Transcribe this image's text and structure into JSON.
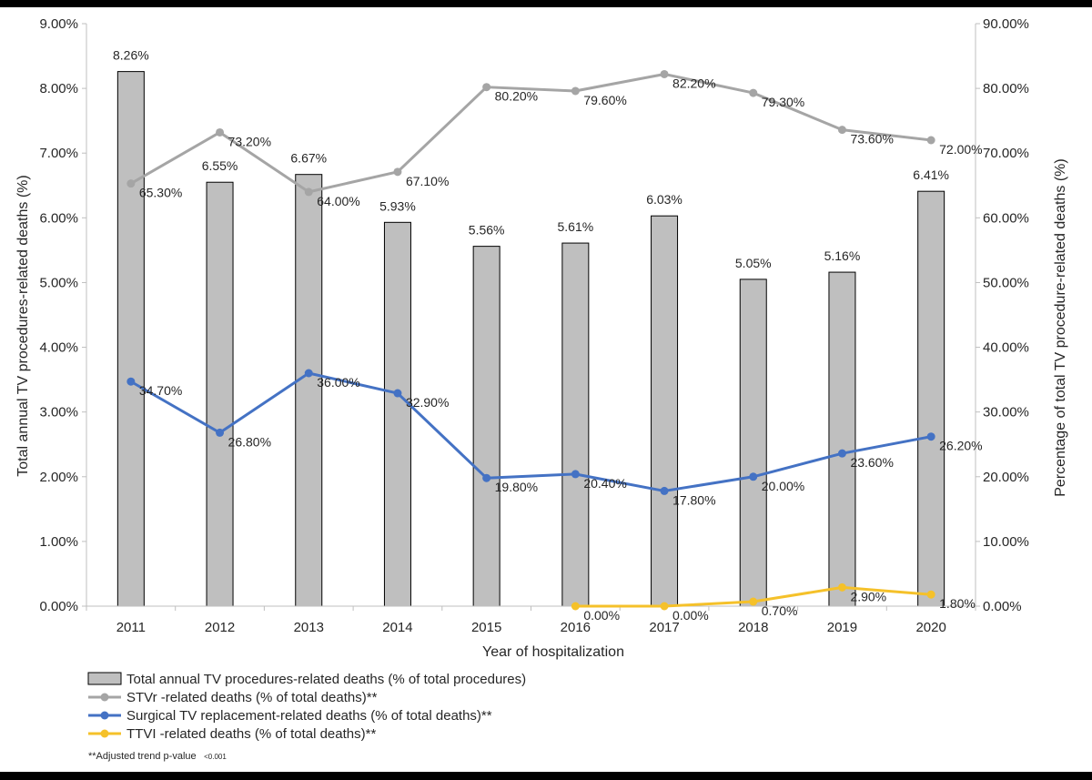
{
  "chart_data": {
    "type": "bar",
    "categories": [
      "2011",
      "2012",
      "2013",
      "2014",
      "2015",
      "2016",
      "2017",
      "2018",
      "2019",
      "2020"
    ],
    "xlabel": "Year of hospitalization",
    "ylabel_left": "Total annual TV procedures-related deaths (%)",
    "ylabel_right": "Percentage of total TV procedure-related deaths (%)",
    "left_axis": {
      "min": 0,
      "max": 9,
      "step": 1,
      "format": "percent2"
    },
    "right_axis": {
      "min": 0,
      "max": 90,
      "step": 10,
      "format": "percent2"
    },
    "bars": {
      "name": "Total annual TV procedures-related deaths (% of total procedures)",
      "color": "#bfbfbf",
      "values": [
        8.26,
        6.55,
        6.67,
        5.93,
        5.56,
        5.61,
        6.03,
        5.05,
        5.16,
        6.41
      ],
      "labels": [
        "8.26%",
        "6.55%",
        "6.67%",
        "5.93%",
        "5.56%",
        "5.61%",
        "6.03%",
        "5.05%",
        "5.16%",
        "6.41%"
      ]
    },
    "series": [
      {
        "name": "STVr -related deaths (% of total deaths)**",
        "axis": "right",
        "color": "#a5a5a5",
        "values": [
          65.3,
          73.2,
          64.0,
          67.1,
          80.2,
          79.6,
          82.2,
          79.3,
          73.6,
          72.0
        ],
        "labels": [
          "65.30%",
          "73.20%",
          "64.00%",
          "67.10%",
          "80.20%",
          "79.60%",
          "82.20%",
          "79.30%",
          "73.60%",
          "72.00%"
        ]
      },
      {
        "name": "Surgical TV replacement-related deaths (% of total deaths)**",
        "axis": "right",
        "color": "#4472c4",
        "values": [
          34.7,
          26.8,
          36.0,
          32.9,
          19.8,
          20.4,
          17.8,
          20.0,
          23.6,
          26.2
        ],
        "labels": [
          "34.70%",
          "26.80%",
          "36.00%",
          "32.90%",
          "19.80%",
          "20.40%",
          "17.80%",
          "20.00%",
          "23.60%",
          "26.20%"
        ]
      },
      {
        "name": "TTVI -related deaths (% of total deaths)**",
        "axis": "right",
        "color": "#f5c12a",
        "values": [
          null,
          null,
          null,
          null,
          null,
          0.0,
          0.0,
          0.7,
          2.9,
          1.8
        ],
        "labels": [
          null,
          null,
          null,
          null,
          null,
          "0.00%",
          "0.00%",
          "0.70%",
          "2.90%",
          "1.80%"
        ]
      }
    ],
    "footnote_main": "**Adjusted trend p-value",
    "footnote_small": "<0.001"
  }
}
